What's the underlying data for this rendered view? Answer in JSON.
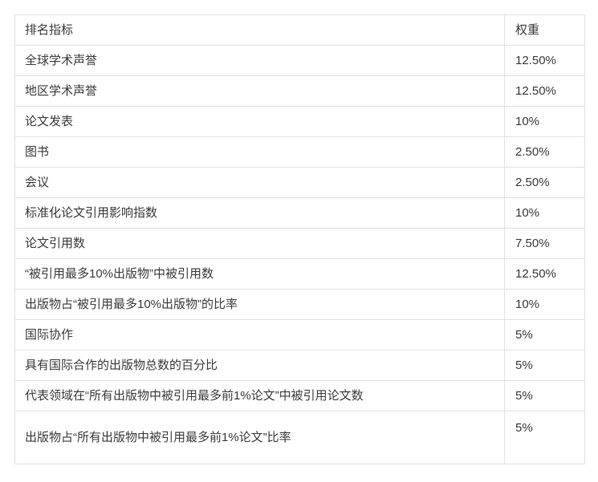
{
  "colors": {
    "border": "#e1e1e1",
    "text": "#3c3c3c",
    "background": "#ffffff"
  },
  "table": {
    "header": {
      "indicator": "排名指标",
      "weight": "权重"
    },
    "rows": [
      {
        "indicator": "全球学术声誉",
        "weight": "12.50%"
      },
      {
        "indicator": "地区学术声誉",
        "weight": "12.50%"
      },
      {
        "indicator": "论文发表",
        "weight": "10%"
      },
      {
        "indicator": "图书",
        "weight": "2.50%"
      },
      {
        "indicator": "会议",
        "weight": "2.50%"
      },
      {
        "indicator": "标准化论文引用影响指数",
        "weight": "10%"
      },
      {
        "indicator": "论文引用数",
        "weight": "7.50%"
      },
      {
        "indicator": "“被引用最多10%出版物”中被引用数",
        "weight": "12.50%"
      },
      {
        "indicator": "出版物占“被引用最多10%出版物”的比率",
        "weight": "10%"
      },
      {
        "indicator": "国际协作",
        "weight": "5%"
      },
      {
        "indicator": "具有国际合作的出版物总数的百分比",
        "weight": "5%"
      },
      {
        "indicator": "代表领域在“所有出版物中被引用最多前1%论文”中被引用论文数",
        "weight": "5%"
      },
      {
        "indicator": "出版物占“所有出版物中被引用最多前1%论文”比率",
        "weight": "5%"
      }
    ]
  }
}
